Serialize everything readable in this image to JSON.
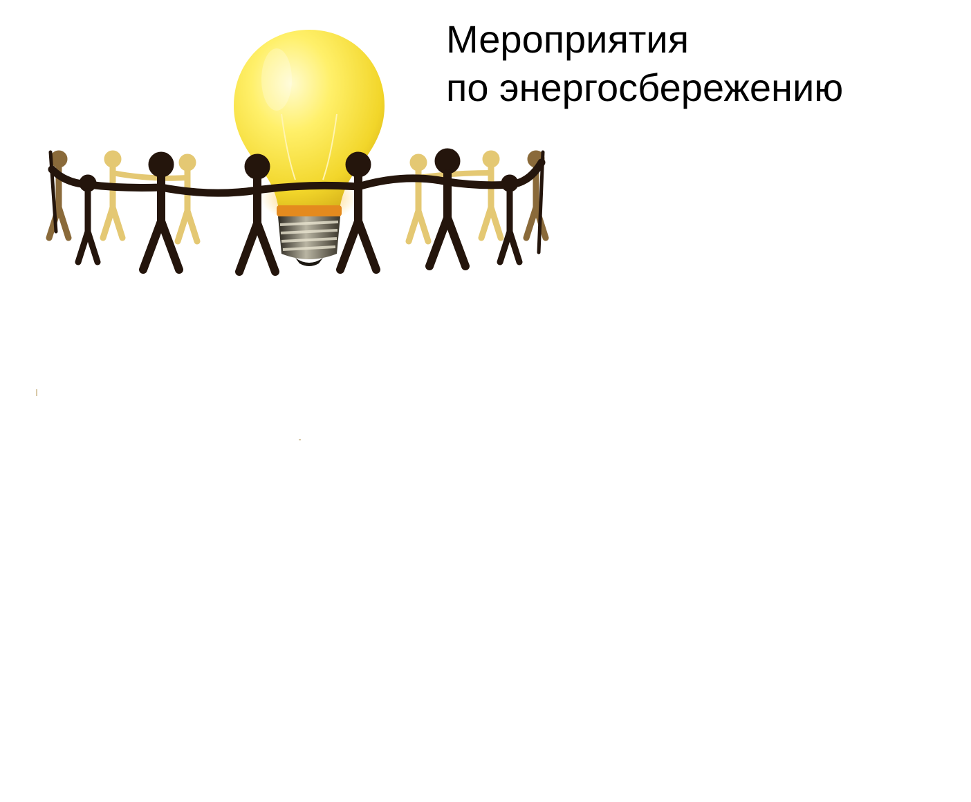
{
  "title": {
    "line1": "Мероприятия",
    "line2": "по энергосбережению"
  },
  "illustration": {
    "icon": "lightbulb-with-people-icon",
    "colors": {
      "bulb_glow": "#fff06a",
      "bulb_body": "#f5dc2a",
      "filament": "#ffd23a",
      "base_metal": "#6b6b55",
      "figures_dark": "#24150c",
      "figures_tan": "#7a5a32",
      "figures_light": "#e4c873"
    }
  }
}
